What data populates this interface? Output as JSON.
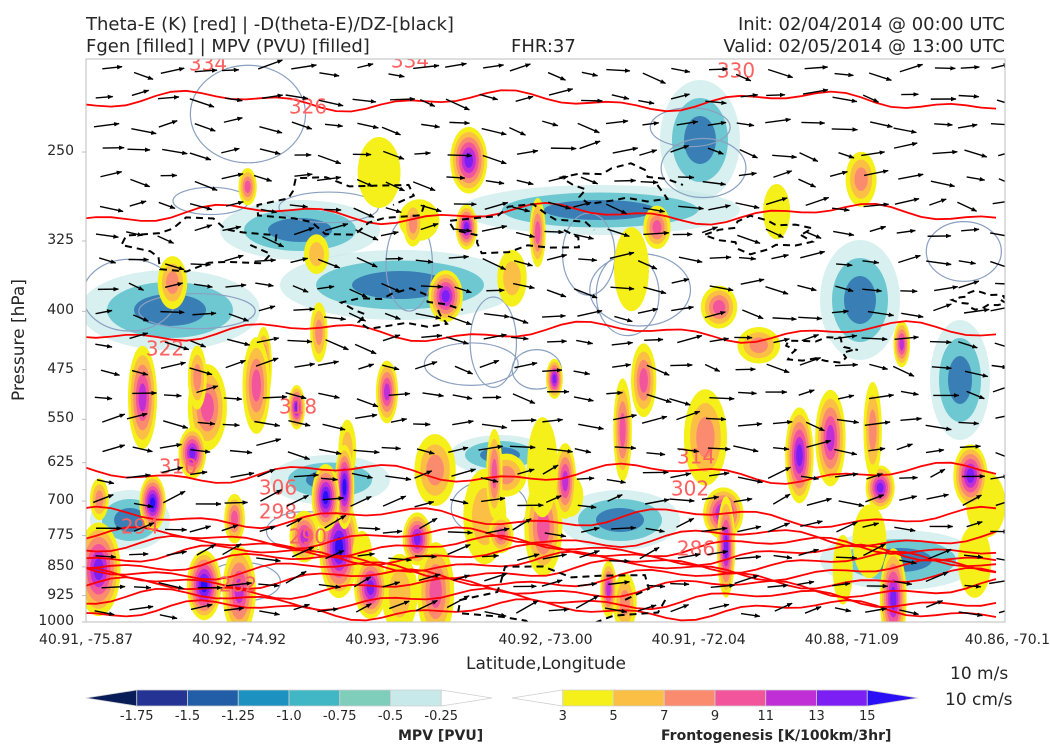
{
  "header": {
    "line1_left": "Theta-E (K) [red] | -D(theta-E)/DZ-[black]",
    "line2_left": "Fgen [filled] | MPV (PVU) [filled]",
    "fhr": "FHR:37",
    "init": "Init: 02/04/2014 @ 00:00 UTC",
    "valid": "Valid: 02/05/2014 @ 13:00 UTC"
  },
  "chart_data": {
    "type": "heatmap",
    "title": "Theta-E (K) [red] | -D(theta-E)/DZ-[black] Fgen [filled] | MPV (PVU) [filled]",
    "xlabel": "Latitude,Longitude",
    "ylabel": "Pressure [hPa]",
    "x_ticks": [
      "40.91, -75.87",
      "40.92, -74.92",
      "40.93, -73.96",
      "40.92, -73.00",
      "40.91, -72.04",
      "40.88, -71.09",
      "40.86, -70.1"
    ],
    "y_ticks": [
      250,
      325,
      400,
      475,
      550,
      625,
      700,
      775,
      850,
      925,
      1000
    ],
    "ylim": [
      1000,
      190
    ],
    "y_scale": "log",
    "theta_e_contour_labels": [
      "334",
      "334",
      "330",
      "326",
      "322",
      "318",
      "314",
      "310",
      "306",
      "302",
      "298",
      "294",
      "290",
      "286",
      "282"
    ],
    "theta_e_levels": [
      282,
      286,
      290,
      294,
      298,
      302,
      306,
      310,
      314,
      318,
      322,
      326,
      330,
      334
    ],
    "mpv_colorbar": {
      "title": "MPV [PVU]",
      "ticks": [
        "-1.75",
        "-1.5",
        "-1.25",
        "-1.0",
        "-0.75",
        "-0.5",
        "-0.25"
      ],
      "colors": [
        "#081d58",
        "#253494",
        "#225ea8",
        "#1d91c0",
        "#41b6c4",
        "#7fcdbb",
        "#c7e9e9",
        "#ffffff"
      ]
    },
    "fgen_colorbar": {
      "title": "Frontogenesis [K/100km/3hr]",
      "ticks": [
        "3",
        "5",
        "7",
        "9",
        "11",
        "13",
        "15"
      ],
      "colors": [
        "#ffffff",
        "#f5f019",
        "#fbbf45",
        "#fb8b6e",
        "#f2559b",
        "#c02fd6",
        "#7b1ff5",
        "#2b10f5"
      ]
    },
    "vector_reference": [
      "10 m/s",
      "10 cm/s"
    ]
  }
}
